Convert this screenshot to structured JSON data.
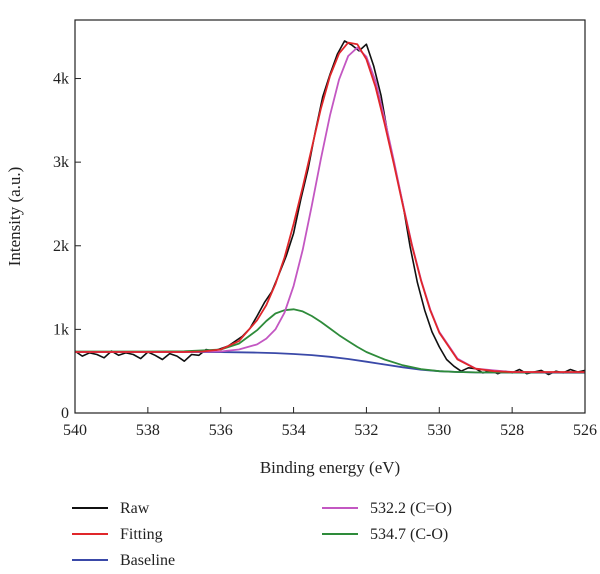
{
  "chart_data": {
    "type": "line",
    "xlabel": "Binding energy (eV)",
    "ylabel": "Intensity (a.u.)",
    "xlim": [
      540,
      526
    ],
    "ylim": [
      0,
      4700
    ],
    "x_reversed": true,
    "grid": false,
    "legend_position": "bottom",
    "x_ticks": [
      540,
      538,
      536,
      534,
      532,
      530,
      528,
      526
    ],
    "x_tick_labels": [
      "540",
      "538",
      "536",
      "534",
      "532",
      "530",
      "528",
      "526"
    ],
    "y_ticks": [
      0,
      1000,
      2000,
      3000,
      4000
    ],
    "y_tick_labels": [
      "0",
      "1k",
      "2k",
      "3k",
      "4k"
    ],
    "series": [
      {
        "name": "Raw",
        "color": "#111111",
        "x": [
          540.0,
          539.8,
          539.6,
          539.4,
          539.2,
          539.0,
          538.8,
          538.6,
          538.4,
          538.2,
          538.0,
          537.8,
          537.6,
          537.4,
          537.2,
          537.0,
          536.8,
          536.6,
          536.4,
          536.2,
          536.0,
          535.8,
          535.6,
          535.4,
          535.2,
          535.0,
          534.8,
          534.6,
          534.4,
          534.2,
          534.0,
          533.8,
          533.6,
          533.4,
          533.2,
          533.0,
          532.8,
          532.6,
          532.4,
          532.2,
          532.0,
          531.8,
          531.6,
          531.4,
          531.2,
          531.0,
          530.8,
          530.6,
          530.4,
          530.2,
          530.0,
          529.8,
          529.6,
          529.4,
          529.2,
          529.0,
          528.8,
          528.6,
          528.4,
          528.2,
          528.0,
          527.8,
          527.6,
          527.4,
          527.2,
          527.0,
          526.8,
          526.6,
          526.4,
          526.2,
          526.0
        ],
        "y": [
          740,
          680,
          720,
          700,
          660,
          740,
          690,
          720,
          700,
          650,
          730,
          690,
          640,
          710,
          680,
          620,
          700,
          690,
          760,
          740,
          770,
          800,
          860,
          920,
          1010,
          1160,
          1320,
          1450,
          1660,
          1880,
          2150,
          2560,
          2920,
          3370,
          3780,
          4050,
          4290,
          4450,
          4400,
          4330,
          4410,
          4150,
          3800,
          3300,
          2900,
          2500,
          1990,
          1560,
          1230,
          970,
          790,
          640,
          560,
          500,
          540,
          530,
          480,
          510,
          470,
          500,
          480,
          520,
          470,
          490,
          510,
          460,
          500,
          480,
          520,
          490,
          510
        ]
      },
      {
        "name": "Fitting",
        "color": "#e0262a",
        "x": [
          540.0,
          539.5,
          539.0,
          538.5,
          538.0,
          537.5,
          537.0,
          536.5,
          536.0,
          535.5,
          535.0,
          534.75,
          534.5,
          534.25,
          534.0,
          533.75,
          533.5,
          533.25,
          533.0,
          532.75,
          532.5,
          532.25,
          532.0,
          531.75,
          531.5,
          531.25,
          531.0,
          530.75,
          530.5,
          530.25,
          530.0,
          529.5,
          529.0,
          528.5,
          528.0,
          527.5,
          527.0,
          526.5,
          526.0
        ],
        "y": [
          730,
          730,
          730,
          730,
          730,
          730,
          730,
          735,
          760,
          860,
          1110,
          1290,
          1540,
          1860,
          2260,
          2700,
          3170,
          3640,
          4030,
          4300,
          4430,
          4410,
          4230,
          3900,
          3460,
          2980,
          2480,
          2000,
          1580,
          1230,
          960,
          640,
          530,
          500,
          490,
          490,
          490,
          490,
          490
        ]
      },
      {
        "name": "Baseline",
        "color": "#3a49a8",
        "x": [
          540.0,
          539.0,
          538.0,
          537.0,
          536.0,
          535.5,
          535.0,
          534.5,
          534.0,
          533.5,
          533.0,
          532.5,
          532.0,
          531.5,
          531.0,
          530.5,
          530.0,
          529.5,
          529.0,
          528.0,
          527.0,
          526.0
        ],
        "y": [
          730,
          730,
          730,
          730,
          728,
          726,
          722,
          716,
          706,
          692,
          672,
          646,
          614,
          580,
          546,
          518,
          500,
          490,
          485,
          483,
          482,
          482
        ]
      },
      {
        "name": "532.2 (C=O)",
        "color": "#c357c2",
        "x": [
          540.0,
          539.0,
          538.0,
          537.0,
          536.0,
          535.5,
          535.0,
          534.75,
          534.5,
          534.25,
          534.0,
          533.75,
          533.5,
          533.25,
          533.0,
          532.75,
          532.5,
          532.25,
          532.0,
          531.75,
          531.5,
          531.25,
          531.0,
          530.75,
          530.5,
          530.25,
          530.0,
          529.5,
          529.0,
          528.0,
          527.0,
          526.0
        ],
        "y": [
          730,
          730,
          730,
          730,
          735,
          760,
          820,
          890,
          1000,
          1200,
          1520,
          1950,
          2480,
          3040,
          3560,
          3990,
          4270,
          4370,
          4260,
          3970,
          3520,
          3020,
          2500,
          2010,
          1590,
          1240,
          970,
          650,
          530,
          490,
          485,
          485
        ]
      },
      {
        "name": "534.7 (C-O)",
        "color": "#2e8b3a",
        "x": [
          540.0,
          539.0,
          538.0,
          537.0,
          536.0,
          535.5,
          535.0,
          534.75,
          534.5,
          534.25,
          534.0,
          533.75,
          533.5,
          533.25,
          533.0,
          532.75,
          532.5,
          532.25,
          532.0,
          531.5,
          531.0,
          530.5,
          530.0,
          529.5,
          529.0,
          528.0,
          527.0,
          526.0
        ],
        "y": [
          735,
          735,
          735,
          738,
          760,
          830,
          990,
          1100,
          1190,
          1230,
          1240,
          1215,
          1160,
          1090,
          1010,
          930,
          860,
          790,
          730,
          640,
          570,
          525,
          500,
          490,
          486,
          484,
          483,
          482
        ]
      }
    ]
  }
}
